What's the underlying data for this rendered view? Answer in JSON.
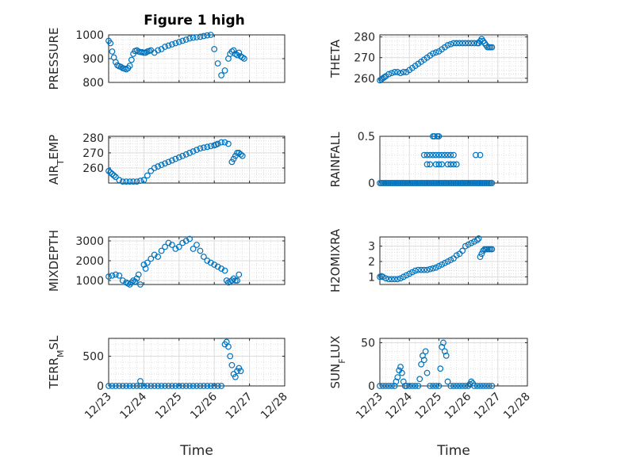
{
  "figure": {
    "title": "Figure 1 high",
    "marker_color": "#0072bd"
  },
  "chart_data": [
    {
      "type": "scatter",
      "title": "Figure 1 high",
      "ylabel": "PRESSURE",
      "ylabel_sub": null,
      "xlim": [
        0,
        5
      ],
      "ylim": [
        800,
        1000
      ],
      "yticks": [
        800,
        900,
        1000
      ],
      "x": [
        0.0,
        0.05,
        0.1,
        0.15,
        0.2,
        0.25,
        0.3,
        0.35,
        0.4,
        0.45,
        0.5,
        0.55,
        0.6,
        0.65,
        0.7,
        0.75,
        0.8,
        0.85,
        0.9,
        0.95,
        1.0,
        1.05,
        1.1,
        1.15,
        1.2,
        1.3,
        1.4,
        1.5,
        1.6,
        1.7,
        1.8,
        1.9,
        2.0,
        2.1,
        2.2,
        2.3,
        2.4,
        2.5,
        2.6,
        2.7,
        2.8,
        2.9,
        3.0,
        3.1,
        3.2,
        3.3,
        3.4,
        3.45,
        3.5,
        3.55,
        3.6,
        3.65,
        3.7,
        3.75,
        3.8,
        3.85
      ],
      "y": [
        975,
        965,
        930,
        905,
        885,
        872,
        868,
        865,
        860,
        858,
        855,
        860,
        870,
        895,
        920,
        932,
        935,
        930,
        928,
        927,
        925,
        925,
        930,
        932,
        935,
        925,
        935,
        940,
        950,
        955,
        960,
        965,
        970,
        975,
        980,
        985,
        988,
        990,
        992,
        995,
        998,
        1000,
        940,
        880,
        830,
        850,
        900,
        920,
        930,
        935,
        920,
        915,
        925,
        910,
        905,
        900
      ]
    },
    {
      "type": "scatter",
      "ylabel": "THETA",
      "ylabel_sub": null,
      "xlim": [
        0,
        5
      ],
      "ylim": [
        258,
        281
      ],
      "yticks": [
        260,
        270,
        280
      ],
      "x": [
        0.0,
        0.05,
        0.1,
        0.15,
        0.2,
        0.3,
        0.4,
        0.5,
        0.6,
        0.7,
        0.8,
        0.9,
        1.0,
        1.1,
        1.2,
        1.3,
        1.4,
        1.5,
        1.6,
        1.7,
        1.8,
        1.9,
        2.0,
        2.1,
        2.2,
        2.3,
        2.4,
        2.5,
        2.6,
        2.7,
        2.8,
        2.9,
        3.0,
        3.1,
        3.2,
        3.3,
        3.35,
        3.4,
        3.45,
        3.5,
        3.55,
        3.6,
        3.65,
        3.7,
        3.75,
        3.8
      ],
      "y": [
        259,
        259.5,
        260,
        260.5,
        261,
        262,
        262.5,
        263,
        263,
        262.5,
        263,
        263,
        264,
        265,
        266,
        267,
        268,
        269,
        270,
        271,
        272,
        272.5,
        273,
        274,
        275,
        276,
        276.5,
        277,
        277,
        277,
        277,
        277,
        277,
        277,
        277,
        277,
        277,
        278,
        279,
        278,
        277,
        276,
        275,
        275,
        275,
        275
      ]
    },
    {
      "type": "scatter",
      "ylabel": "AIR",
      "ylabel_sub": "T",
      "ylabel_tail": "EMP",
      "xlim": [
        0,
        5
      ],
      "ylim": [
        250,
        281
      ],
      "yticks": [
        260,
        270,
        280
      ],
      "x": [
        0.0,
        0.05,
        0.1,
        0.15,
        0.2,
        0.3,
        0.4,
        0.5,
        0.6,
        0.7,
        0.8,
        0.9,
        1.0,
        1.1,
        1.2,
        1.3,
        1.4,
        1.5,
        1.6,
        1.7,
        1.8,
        1.9,
        2.0,
        2.1,
        2.2,
        2.3,
        2.4,
        2.5,
        2.6,
        2.7,
        2.8,
        2.9,
        3.0,
        3.05,
        3.1,
        3.2,
        3.3,
        3.4,
        3.5,
        3.55,
        3.6,
        3.65,
        3.7,
        3.75,
        3.8
      ],
      "y": [
        258,
        257,
        256,
        255,
        254,
        252,
        251,
        251,
        251,
        251,
        251,
        251.5,
        252,
        255,
        258,
        260,
        261,
        262,
        263,
        264,
        265,
        266,
        267,
        268,
        269,
        270,
        271,
        272,
        273,
        273.5,
        274,
        274.5,
        275,
        275.5,
        276,
        277,
        277,
        276,
        264,
        266,
        268,
        270,
        270,
        269,
        268
      ]
    },
    {
      "type": "scatter",
      "ylabel": "RAINFALL",
      "ylabel_sub": null,
      "xlim": [
        0,
        5
      ],
      "ylim": [
        0,
        0.5
      ],
      "yticks": [
        0,
        0.5
      ],
      "ytick_labels": [
        "0",
        "0.5"
      ],
      "x": [
        0.0,
        0.05,
        0.1,
        0.15,
        0.2,
        0.25,
        0.3,
        0.35,
        0.4,
        0.45,
        0.5,
        0.55,
        0.6,
        0.65,
        0.7,
        0.75,
        0.8,
        0.85,
        0.9,
        0.95,
        1.0,
        1.05,
        1.1,
        1.15,
        1.2,
        1.25,
        1.3,
        1.35,
        1.4,
        1.45,
        1.5,
        1.55,
        1.6,
        1.65,
        1.7,
        1.75,
        1.8,
        1.85,
        1.9,
        1.95,
        2.0,
        2.05,
        2.1,
        2.15,
        2.2,
        2.25,
        2.3,
        2.35,
        2.4,
        2.45,
        2.5,
        2.55,
        2.6,
        2.65,
        2.7,
        2.75,
        2.8,
        2.85,
        2.9,
        2.95,
        3.0,
        3.05,
        3.1,
        3.15,
        3.2,
        3.25,
        3.3,
        3.35,
        3.4,
        3.45,
        3.5,
        3.55,
        3.6,
        3.65,
        3.7,
        3.75,
        3.8,
        1.5,
        1.6,
        1.7,
        1.8,
        1.9,
        2.0,
        2.1,
        2.2,
        2.3,
        2.4,
        2.5,
        3.25,
        3.4,
        1.6,
        1.7,
        1.9,
        2.0,
        2.1,
        2.3,
        2.4,
        2.5,
        2.6,
        1.8,
        1.85,
        1.95,
        2.0
      ],
      "y": [
        0,
        0,
        0,
        0,
        0,
        0,
        0,
        0,
        0,
        0,
        0,
        0,
        0,
        0,
        0,
        0,
        0,
        0,
        0,
        0,
        0,
        0,
        0,
        0,
        0,
        0,
        0,
        0,
        0,
        0,
        0,
        0,
        0,
        0,
        0,
        0,
        0,
        0,
        0,
        0,
        0,
        0,
        0,
        0,
        0,
        0,
        0,
        0,
        0,
        0,
        0,
        0,
        0,
        0,
        0,
        0,
        0,
        0,
        0,
        0,
        0,
        0,
        0,
        0,
        0,
        0,
        0,
        0,
        0,
        0,
        0,
        0,
        0,
        0,
        0,
        0,
        0,
        0.3,
        0.3,
        0.3,
        0.3,
        0.3,
        0.3,
        0.3,
        0.3,
        0.3,
        0.3,
        0.3,
        0.3,
        0.3,
        0.2,
        0.2,
        0.2,
        0.2,
        0.2,
        0.2,
        0.2,
        0.2,
        0.2,
        0.5,
        0.5,
        0.5,
        0.5
      ]
    },
    {
      "type": "scatter",
      "ylabel": "MIXDEPTH",
      "ylabel_sub": null,
      "xlim": [
        0,
        5
      ],
      "ylim": [
        800,
        3200
      ],
      "yticks": [
        1000,
        2000,
        3000
      ],
      "x": [
        0.0,
        0.1,
        0.2,
        0.3,
        0.4,
        0.5,
        0.55,
        0.6,
        0.65,
        0.7,
        0.75,
        0.8,
        0.85,
        0.9,
        1.0,
        1.05,
        1.1,
        1.2,
        1.3,
        1.4,
        1.5,
        1.6,
        1.7,
        1.8,
        1.9,
        2.0,
        2.1,
        2.2,
        2.3,
        2.4,
        2.5,
        2.6,
        2.7,
        2.8,
        2.9,
        3.0,
        3.1,
        3.2,
        3.3,
        3.35,
        3.4,
        3.45,
        3.5,
        3.55,
        3.6,
        3.65,
        3.7
      ],
      "y": [
        1200,
        1250,
        1300,
        1250,
        1000,
        900,
        850,
        800,
        900,
        1000,
        950,
        1100,
        1300,
        800,
        1800,
        1600,
        1900,
        2100,
        2300,
        2200,
        2500,
        2700,
        2900,
        2800,
        2600,
        2700,
        2900,
        3000,
        3100,
        2600,
        2800,
        2500,
        2200,
        2000,
        1900,
        1800,
        1700,
        1600,
        1500,
        1000,
        900,
        950,
        1000,
        1100,
        1000,
        1000,
        1300
      ]
    },
    {
      "type": "scatter",
      "ylabel": "H2OMIXRA",
      "ylabel_sub": null,
      "xlim": [
        0,
        5
      ],
      "ylim": [
        0.5,
        3.6
      ],
      "yticks": [
        1,
        2,
        3
      ],
      "x": [
        0.0,
        0.05,
        0.1,
        0.2,
        0.3,
        0.4,
        0.5,
        0.6,
        0.7,
        0.8,
        0.9,
        1.0,
        1.1,
        1.2,
        1.3,
        1.4,
        1.5,
        1.6,
        1.7,
        1.8,
        1.9,
        2.0,
        2.1,
        2.2,
        2.3,
        2.4,
        2.5,
        2.6,
        2.7,
        2.8,
        2.9,
        3.0,
        3.1,
        3.2,
        3.3,
        3.35,
        3.4,
        3.45,
        3.5,
        3.55,
        3.6,
        3.65,
        3.7,
        3.75,
        3.8
      ],
      "y": [
        1.0,
        1.05,
        1.0,
        0.9,
        0.85,
        0.85,
        0.85,
        0.85,
        0.9,
        1.0,
        1.1,
        1.2,
        1.3,
        1.4,
        1.45,
        1.45,
        1.45,
        1.45,
        1.5,
        1.55,
        1.6,
        1.7,
        1.8,
        1.9,
        2.0,
        2.1,
        2.2,
        2.4,
        2.5,
        2.7,
        3.0,
        3.1,
        3.2,
        3.3,
        3.4,
        3.5,
        2.3,
        2.5,
        2.7,
        2.8,
        2.8,
        2.8,
        2.8,
        2.8,
        2.8
      ]
    },
    {
      "type": "scatter",
      "ylabel": "TERR",
      "ylabel_sub": "M",
      "ylabel_tail": "SL",
      "xlim": [
        0,
        5
      ],
      "ylim": [
        0,
        800
      ],
      "yticks": [
        0,
        500
      ],
      "x": [
        0.0,
        0.1,
        0.2,
        0.3,
        0.4,
        0.5,
        0.6,
        0.7,
        0.8,
        0.9,
        1.0,
        1.1,
        1.2,
        1.3,
        1.4,
        1.5,
        1.6,
        1.7,
        1.8,
        1.9,
        2.0,
        2.1,
        2.2,
        2.3,
        2.4,
        2.5,
        2.6,
        2.7,
        2.8,
        2.9,
        3.0,
        3.1,
        3.2,
        3.3,
        3.35,
        3.4,
        3.45,
        3.5,
        3.55,
        3.6,
        3.65,
        3.7,
        3.75,
        0.9
      ],
      "y": [
        0,
        0,
        0,
        0,
        0,
        0,
        0,
        0,
        0,
        0,
        0,
        0,
        0,
        0,
        0,
        0,
        0,
        0,
        0,
        0,
        0,
        0,
        0,
        0,
        0,
        0,
        0,
        0,
        0,
        0,
        0,
        0,
        0,
        700,
        740,
        660,
        500,
        350,
        200,
        150,
        250,
        300,
        250,
        80
      ]
    },
    {
      "type": "scatter",
      "ylabel": "SUN",
      "ylabel_sub": "F",
      "ylabel_tail": "LUX",
      "xlim": [
        0,
        5
      ],
      "ylim": [
        0,
        55
      ],
      "yticks": [
        0,
        50
      ],
      "x": [
        0.0,
        0.1,
        0.2,
        0.3,
        0.4,
        0.5,
        0.55,
        0.6,
        0.65,
        0.7,
        0.75,
        0.8,
        0.85,
        0.9,
        1.0,
        1.1,
        1.2,
        1.3,
        1.35,
        1.4,
        1.45,
        1.5,
        1.55,
        1.6,
        1.7,
        1.8,
        1.9,
        2.0,
        2.05,
        2.1,
        2.15,
        2.2,
        2.25,
        2.3,
        2.4,
        2.5,
        2.6,
        2.7,
        2.8,
        2.9,
        3.0,
        3.05,
        3.1,
        3.15,
        3.2,
        3.3,
        3.4,
        3.5,
        3.6,
        3.7,
        3.8
      ],
      "y": [
        0,
        0,
        0,
        0,
        0,
        0,
        5,
        10,
        18,
        22,
        15,
        5,
        0,
        0,
        0,
        0,
        0,
        0,
        8,
        25,
        35,
        30,
        40,
        15,
        0,
        0,
        0,
        0,
        20,
        45,
        50,
        40,
        35,
        5,
        0,
        0,
        0,
        0,
        0,
        0,
        0,
        2,
        5,
        3,
        0,
        0,
        0,
        0,
        0,
        0,
        0
      ]
    }
  ],
  "x_axis": {
    "label": "Time",
    "tick_labels": [
      "12/23",
      "12/24",
      "12/25",
      "12/26",
      "12/27",
      "12/28"
    ]
  }
}
